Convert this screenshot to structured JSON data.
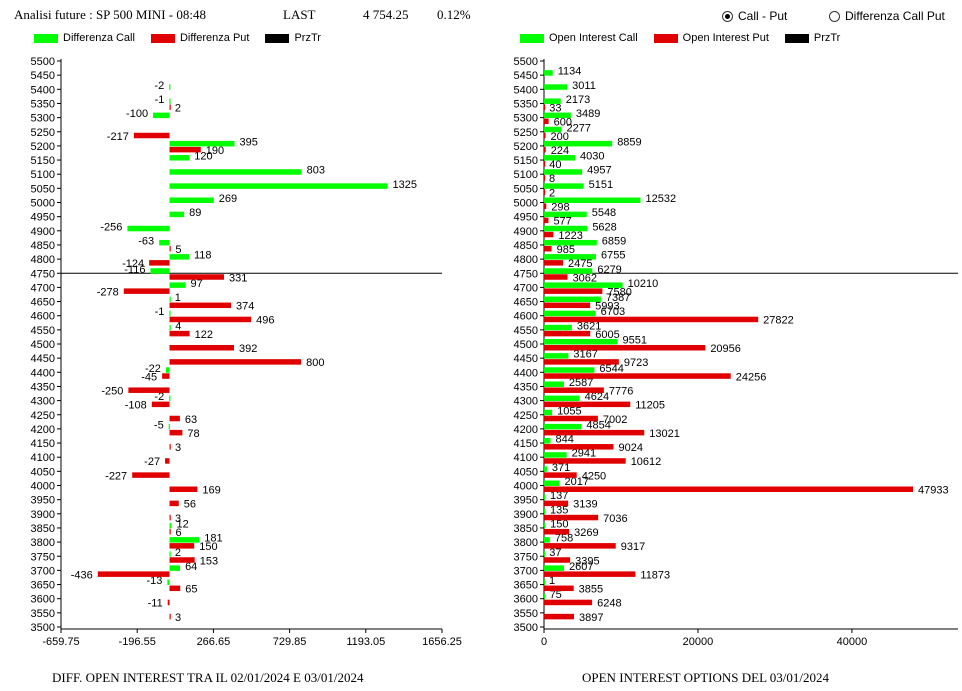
{
  "header": {
    "title": "Analisi future : SP 500 MINI - 08:48",
    "last_label": "LAST",
    "last_value": "4 754.25",
    "change": "0.12%"
  },
  "radio": {
    "option1": "Call - Put",
    "option2": "Differenza Call Put",
    "selected": "option1"
  },
  "legend_left": {
    "call": "Differenza Call",
    "put": "Differenza Put",
    "price": "PrzTr"
  },
  "legend_right": {
    "call": "Open Interest Call",
    "put": "Open Interest Put",
    "price": "PrzTr"
  },
  "colors": {
    "call": "#00ff00",
    "put": "#e00000",
    "price": "#000000"
  },
  "footer": {
    "left": "DIFF. OPEN INTEREST TRA IL 02/01/2024 E 03/01/2024",
    "right": "OPEN INTEREST OPTIONS DEL 03/01/2024"
  },
  "chart_data": [
    {
      "type": "bar",
      "orientation": "horizontal",
      "strikes": [
        5500,
        5450,
        5400,
        5350,
        5300,
        5250,
        5200,
        5150,
        5100,
        5050,
        5000,
        4950,
        4900,
        4850,
        4800,
        4750,
        4700,
        4650,
        4600,
        4550,
        4500,
        4450,
        4400,
        4350,
        4300,
        4250,
        4200,
        4150,
        4100,
        4050,
        4000,
        3950,
        3900,
        3850,
        3800,
        3750,
        3700,
        3650,
        3600,
        3550,
        3500
      ],
      "series": [
        {
          "name": "Differenza Call",
          "values": [
            null,
            null,
            -2,
            -1,
            -100,
            null,
            395,
            120,
            803,
            1325,
            269,
            89,
            -256,
            -63,
            118,
            -116,
            97,
            1,
            -1,
            4,
            null,
            null,
            -22,
            null,
            -2,
            null,
            -5,
            null,
            null,
            null,
            null,
            null,
            null,
            12,
            181,
            2,
            64,
            -13,
            null,
            null,
            null
          ]
        },
        {
          "name": "Differenza Put",
          "values": [
            null,
            null,
            null,
            2,
            null,
            -217,
            190,
            null,
            null,
            null,
            null,
            null,
            null,
            5,
            -124,
            331,
            -278,
            374,
            496,
            122,
            392,
            800,
            -45,
            -250,
            -108,
            63,
            78,
            3,
            -27,
            -227,
            169,
            56,
            3,
            6,
            150,
            153,
            -436,
            65,
            -11,
            3,
            null
          ]
        }
      ],
      "price_level": 4750,
      "xticks": [
        "-659.75",
        "-196.55",
        "266.65",
        "729.85",
        "1193.05",
        "1656.25"
      ],
      "xlim": [
        -659.75,
        1656.25
      ]
    },
    {
      "type": "bar",
      "orientation": "horizontal",
      "strikes": [
        5500,
        5450,
        5400,
        5350,
        5300,
        5250,
        5200,
        5150,
        5100,
        5050,
        5000,
        4950,
        4900,
        4850,
        4800,
        4750,
        4700,
        4650,
        4600,
        4550,
        4500,
        4450,
        4400,
        4350,
        4300,
        4250,
        4200,
        4150,
        4100,
        4050,
        4000,
        3950,
        3900,
        3850,
        3800,
        3750,
        3700,
        3650,
        3600,
        3550,
        3500
      ],
      "series": [
        {
          "name": "Open Interest Call",
          "values": [
            null,
            1134,
            3011,
            2173,
            3489,
            2277,
            8859,
            4030,
            4957,
            5151,
            12532,
            5548,
            5628,
            6859,
            6755,
            6279,
            10210,
            7387,
            6703,
            3621,
            9551,
            3167,
            6544,
            2587,
            4624,
            1055,
            4854,
            844,
            2941,
            371,
            2017,
            137,
            135,
            150,
            758,
            37,
            2607,
            1,
            75,
            null,
            null
          ]
        },
        {
          "name": "Open Interest Put",
          "values": [
            null,
            null,
            null,
            33,
            600,
            200,
            224,
            40,
            8,
            2,
            298,
            577,
            1223,
            985,
            2475,
            3062,
            7580,
            5993,
            27822,
            6005,
            20956,
            9723,
            24256,
            7776,
            11205,
            7002,
            13021,
            9024,
            10612,
            4250,
            47933,
            3139,
            7036,
            3269,
            9317,
            3395,
            11873,
            3855,
            6248,
            3897,
            null
          ]
        }
      ],
      "price_level": 4750,
      "xticks": [
        "0",
        "20000",
        "40000"
      ],
      "xlim": [
        0,
        47933
      ]
    }
  ]
}
